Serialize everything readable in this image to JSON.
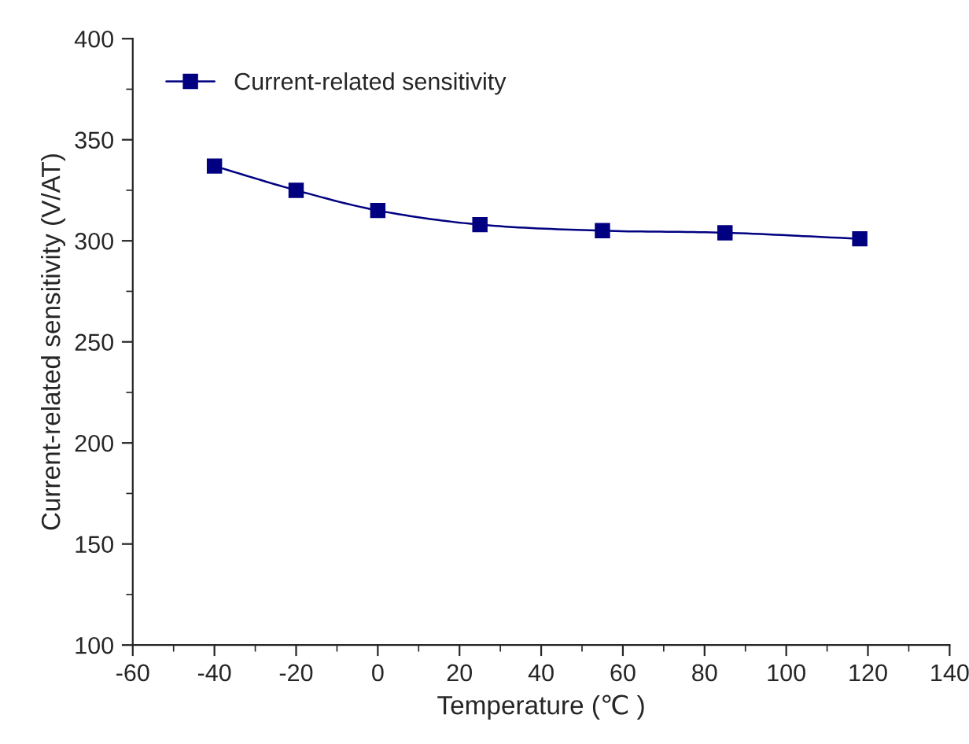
{
  "chart_data": {
    "type": "line",
    "xlabel": "Temperature (℃ )",
    "ylabel": "Current-related sensitivity (V/AT)",
    "x": [
      -40,
      -20,
      0,
      25,
      55,
      85,
      118
    ],
    "series": [
      {
        "name": "Current-related sensitivity",
        "color": "#000080",
        "values": [
          337,
          325,
          315,
          308,
          305,
          304,
          301
        ]
      }
    ],
    "xlim": [
      -60,
      140
    ],
    "xticks": [
      -60,
      -40,
      -20,
      0,
      20,
      40,
      60,
      80,
      100,
      120,
      140
    ],
    "ylim": [
      100,
      400
    ],
    "yticks": [
      100,
      150,
      200,
      250,
      300,
      350,
      400
    ],
    "marker": "square",
    "line_style": "solid",
    "legend": "top left",
    "grid": false
  }
}
